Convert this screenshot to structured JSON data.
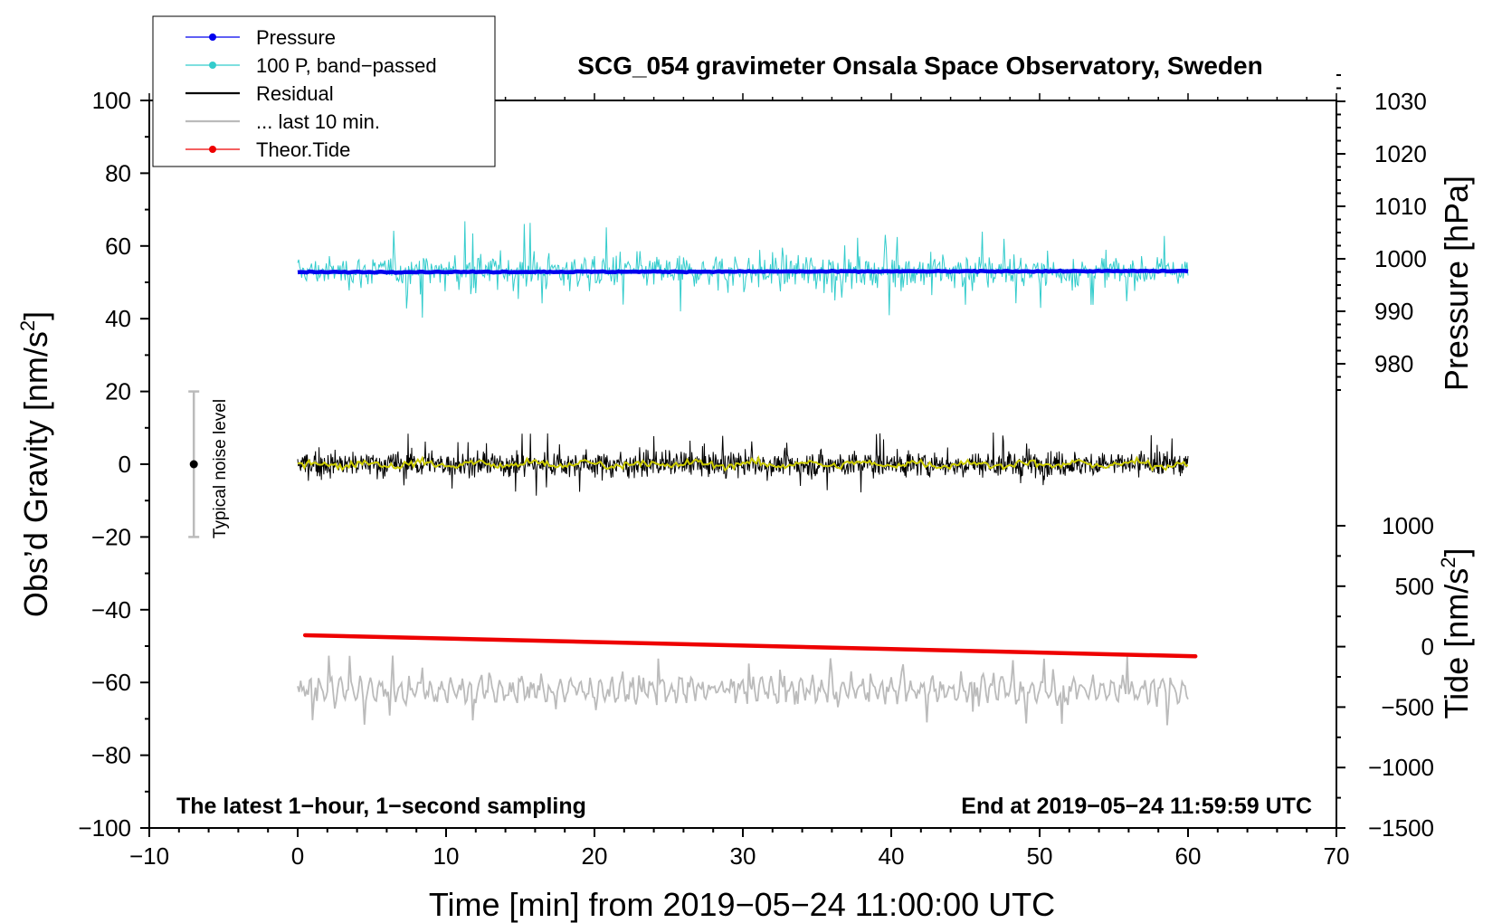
{
  "chart_data": {
    "type": "line",
    "title": "SCG_054 gravimeter Onsala Space Observatory, Sweden",
    "xlabel": "Time [min] from 2019−05−24 11:00:00 UTC",
    "ylabel": "Obs’d Gravity [nm/s²]",
    "ylabel_parts": {
      "main": "Obs’d Gravity [nm/s",
      "sup": "2",
      "end": "]"
    },
    "y2label": "Pressure [hPa]",
    "y3label_parts": {
      "main": "Tide [nm/s",
      "sup": "2",
      "end": "]"
    },
    "xlim": [
      -10,
      70
    ],
    "ylim": [
      -100,
      100
    ],
    "x_ticks": [
      "−10",
      "0",
      "10",
      "20",
      "30",
      "40",
      "50",
      "60",
      "70"
    ],
    "y_ticks": [
      "−100",
      "−80",
      "−60",
      "−40",
      "−20",
      "0",
      "20",
      "40",
      "60",
      "80",
      "100"
    ],
    "pressure_axis": {
      "range": [
        970,
        1035
      ],
      "ticks": [
        "980",
        "990",
        "1000",
        "1010",
        "1020",
        "1030"
      ]
    },
    "tide_axis": {
      "range": [
        -1500,
        1000
      ],
      "ticks": [
        "1000",
        "500",
        "0",
        "−500",
        "−1000",
        "−1500"
      ]
    },
    "note_left": "The latest 1−hour, 1−second sampling",
    "note_right": "End at 2019−05−24 11:59:59 UTC",
    "noise_label": "Typical noise level",
    "noise_bar": {
      "x": -7,
      "center": 0,
      "low": -20,
      "high": 20
    },
    "legend": [
      {
        "label": "Pressure",
        "color": "#0000ee",
        "marker": true
      },
      {
        "label": "100 P, band−passed",
        "color": "#33cccc",
        "marker": true
      },
      {
        "label": "Residual",
        "color": "#000000",
        "marker": false
      },
      {
        "label": "... last 10 min.",
        "color": "#bbbbbb",
        "marker": false
      },
      {
        "label": "Theor.Tide",
        "color": "#ee0000",
        "marker": true
      }
    ],
    "series": [
      {
        "name": "Pressure",
        "color": "#0000ee",
        "x_range": [
          0,
          60
        ],
        "start": 52.8,
        "end": 53.1,
        "noise_amplitude": 0.4
      },
      {
        "name": "100 P, band−passed",
        "color": "#33cccc",
        "x_range": [
          0,
          60
        ],
        "center": 53,
        "noise_amplitude": 4,
        "max_excursion": 13
      },
      {
        "name": "Residual",
        "color": "#000000",
        "x_range": [
          0,
          60
        ],
        "center": 0,
        "noise_amplitude": 3,
        "max_excursion": 9
      },
      {
        "name": "Residual (smoothed)",
        "color": "#cccc00",
        "x_range": [
          0,
          60
        ],
        "center": 0,
        "noise_amplitude": 1
      },
      {
        "name": "... last 10 min.",
        "color": "#bbbbbb",
        "x_range": [
          0,
          60
        ],
        "center": -62,
        "noise_amplitude": 3,
        "max_excursion": 10
      },
      {
        "name": "Theor.Tide",
        "color": "#ee0000",
        "x_range": [
          0.5,
          60.5
        ],
        "start": -47,
        "end": -52.8
      }
    ]
  }
}
